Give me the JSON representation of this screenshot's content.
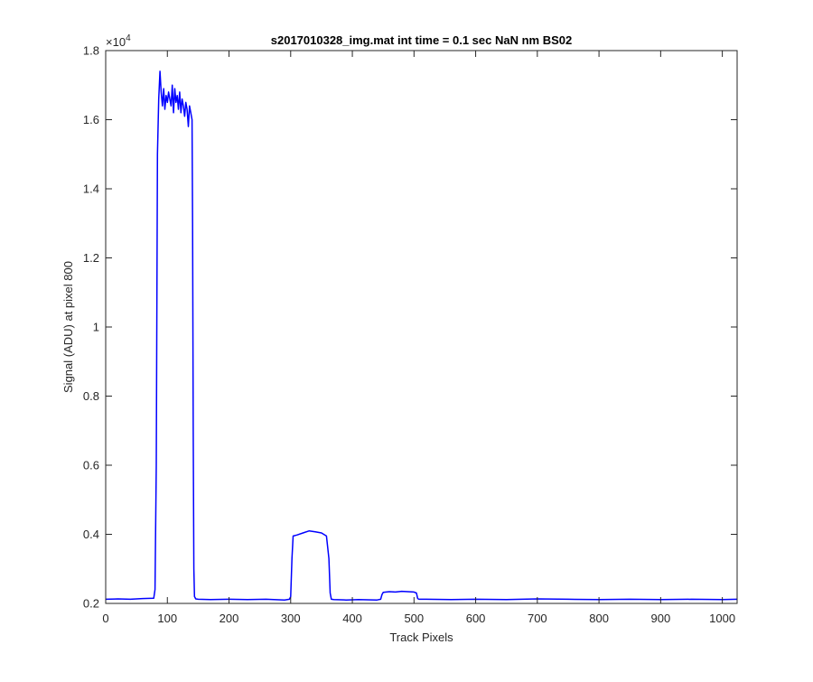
{
  "chart_data": {
    "type": "line",
    "title": "s2017010328_img.mat int time = 0.1 sec  NaN nm BS02",
    "xlabel": "Track Pixels",
    "ylabel": "Signal (ADU) at pixel 800",
    "y_exponent_label": "×10",
    "y_exponent_power": "4",
    "xlim": [
      0,
      1024
    ],
    "ylim": [
      0.2,
      1.8
    ],
    "y_scale_factor": 10000,
    "grid": false,
    "legend": "none",
    "xticks": [
      0,
      100,
      200,
      300,
      400,
      500,
      600,
      700,
      800,
      900,
      1000
    ],
    "xtick_labels": [
      "0",
      "100",
      "200",
      "300",
      "400",
      "500",
      "600",
      "700",
      "800",
      "900",
      "1000"
    ],
    "yticks": [
      0.2,
      0.4,
      0.6,
      0.8,
      1.0,
      1.2,
      1.4,
      1.6,
      1.8
    ],
    "ytick_labels": [
      "0.2",
      "0.4",
      "0.6",
      "0.8",
      "1",
      "1.2",
      "1.4",
      "1.6",
      "1.8"
    ],
    "series": [
      {
        "color": "#0000ff",
        "x": [
          0,
          20,
          40,
          60,
          78,
          80,
          82,
          84,
          86,
          88,
          90,
          92,
          94,
          96,
          98,
          100,
          102,
          104,
          106,
          108,
          110,
          112,
          114,
          116,
          118,
          120,
          122,
          124,
          126,
          128,
          130,
          132,
          134,
          136,
          138,
          140,
          141,
          142,
          143,
          144,
          146,
          150,
          170,
          200,
          230,
          260,
          290,
          298,
          300,
          302,
          304,
          310,
          320,
          330,
          340,
          350,
          358,
          362,
          364,
          366,
          370,
          390,
          410,
          440,
          446,
          448,
          450,
          460,
          470,
          480,
          490,
          500,
          504,
          506,
          508,
          520,
          560,
          600,
          650,
          700,
          750,
          800,
          850,
          900,
          950,
          1000,
          1024
        ],
        "y": [
          0.212,
          0.213,
          0.212,
          0.214,
          0.215,
          0.24,
          0.6,
          1.5,
          1.66,
          1.74,
          1.68,
          1.64,
          1.69,
          1.63,
          1.67,
          1.65,
          1.68,
          1.66,
          1.64,
          1.7,
          1.62,
          1.69,
          1.65,
          1.67,
          1.63,
          1.68,
          1.62,
          1.66,
          1.64,
          1.61,
          1.65,
          1.63,
          1.58,
          1.64,
          1.62,
          1.6,
          1.3,
          0.7,
          0.3,
          0.22,
          0.213,
          0.212,
          0.211,
          0.212,
          0.211,
          0.212,
          0.21,
          0.212,
          0.22,
          0.33,
          0.395,
          0.398,
          0.404,
          0.41,
          0.407,
          0.404,
          0.395,
          0.33,
          0.23,
          0.212,
          0.211,
          0.21,
          0.211,
          0.21,
          0.212,
          0.225,
          0.232,
          0.234,
          0.233,
          0.235,
          0.234,
          0.233,
          0.23,
          0.214,
          0.212,
          0.212,
          0.211,
          0.212,
          0.211,
          0.213,
          0.212,
          0.211,
          0.212,
          0.211,
          0.212,
          0.211,
          0.212
        ]
      }
    ]
  }
}
